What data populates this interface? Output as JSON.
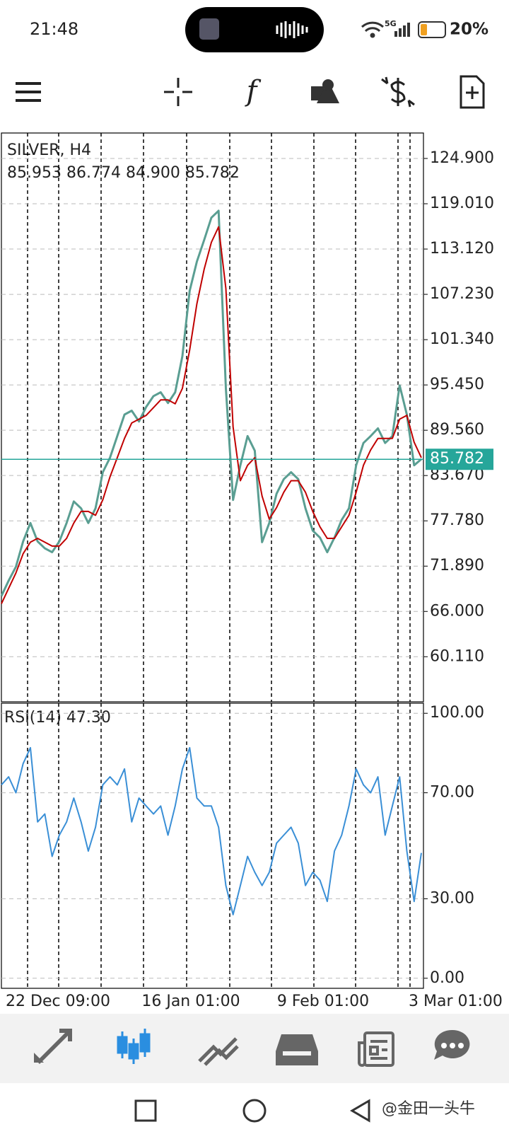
{
  "status_bar": {
    "time": "21:48",
    "network": "5G",
    "battery": "20%"
  },
  "chart_data": [
    {
      "type": "line",
      "title": "SILVER, H4",
      "subtitle": "85.953 86.774 84.900 85.782",
      "ylim": [
        54.25,
        128.21
      ],
      "yticks": [
        {
          "value": 124.9,
          "label": "124.900"
        },
        {
          "value": 119.01,
          "label": "119.010"
        },
        {
          "value": 113.12,
          "label": "113.120"
        },
        {
          "value": 107.23,
          "label": "107.230"
        },
        {
          "value": 101.34,
          "label": "101.340"
        },
        {
          "value": 95.45,
          "label": "95.450"
        },
        {
          "value": 89.56,
          "label": "89.560"
        },
        {
          "value": 83.67,
          "label": "83.670"
        },
        {
          "value": 77.78,
          "label": "77.780"
        },
        {
          "value": 71.89,
          "label": "71.890"
        },
        {
          "value": 66.0,
          "label": "66.000"
        },
        {
          "value": 60.11,
          "label": "60.110"
        }
      ],
      "grid": true,
      "current_price": {
        "value": 85.782,
        "label": "85.782",
        "color": "#26a69a"
      },
      "series": [
        {
          "color": "#5a9e92",
          "values": [
            68.0,
            70.0,
            71.8,
            75.1,
            77.5,
            75.1,
            74.2,
            73.7,
            75.1,
            77.5,
            80.3,
            79.4,
            77.5,
            79.4,
            84.1,
            86.0,
            88.8,
            91.6,
            92.1,
            90.7,
            92.6,
            94.0,
            94.5,
            93.1,
            94.5,
            99.2,
            107.7,
            111.5,
            114.3,
            117.2,
            118.1,
            95.0,
            80.5,
            85.0,
            88.8,
            86.9,
            75.0,
            77.5,
            81.3,
            83.2,
            84.1,
            83.2,
            79.4,
            76.5,
            75.6,
            73.7,
            75.6,
            77.9,
            79.4,
            85.0,
            87.9,
            88.8,
            89.8,
            87.9,
            88.8,
            95.4,
            91.6,
            85.0,
            85.8
          ]
        },
        {
          "color": "#c00000",
          "values": [
            67,
            69,
            71,
            73.5,
            75,
            75.5,
            75,
            74.5,
            74.5,
            75.5,
            77.5,
            79,
            79,
            78.5,
            80.5,
            83.5,
            86,
            88.5,
            90.5,
            91,
            91.5,
            92.5,
            93.5,
            93.5,
            93,
            95,
            100,
            106,
            110.5,
            114,
            116,
            108,
            90,
            83,
            85,
            86,
            81,
            78,
            79.5,
            81.5,
            83,
            83,
            81.5,
            79,
            77,
            75.5,
            75.5,
            77,
            78.5,
            81.5,
            85,
            87,
            88.5,
            88.5,
            88.5,
            91,
            91.5,
            88,
            86
          ]
        }
      ]
    },
    {
      "type": "line",
      "title": "RSI(14) 47.30",
      "ylim": [
        -3.8,
        103.8
      ],
      "yticks": [
        {
          "value": 100,
          "label": "100.00"
        },
        {
          "value": 70,
          "label": "70.00"
        },
        {
          "value": 30,
          "label": "30.00"
        },
        {
          "value": 0,
          "label": "0.00"
        }
      ],
      "grid": true,
      "series": [
        {
          "color": "#3a8fd6",
          "values": [
            73,
            76,
            70,
            81,
            87,
            59,
            62,
            46,
            54,
            59,
            68,
            59,
            48,
            57,
            73,
            76,
            73,
            79,
            59,
            68,
            65,
            62,
            65,
            54,
            65,
            79,
            87,
            68,
            65,
            65,
            57,
            35,
            24,
            35,
            46,
            40,
            35,
            40,
            51,
            54,
            57,
            51,
            35,
            40,
            37,
            29,
            48,
            54,
            65,
            79,
            73,
            70,
            76,
            54,
            65,
            76,
            48,
            29,
            47.3
          ]
        }
      ],
      "xtick_labels": [
        "22 Dec 09:00",
        "16 Jan 01:00",
        "9 Feb 01:00",
        "3 Mar 01:00"
      ]
    }
  ],
  "watermark": "@金田一头牛"
}
